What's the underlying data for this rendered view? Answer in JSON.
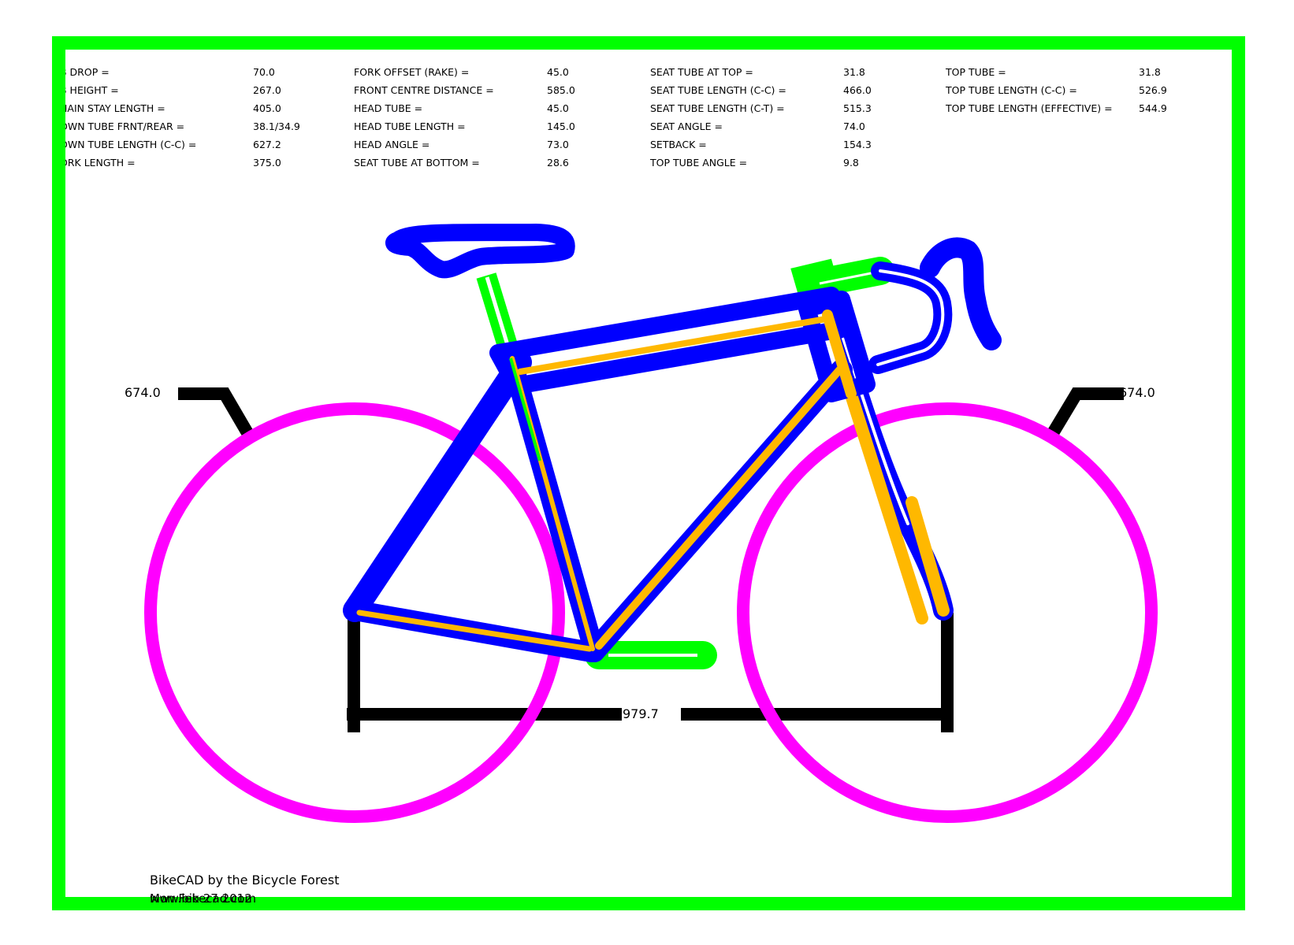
{
  "specs": {
    "col0": [
      {
        "label": "B DROP =",
        "value": "70.0"
      },
      {
        "label": "B HEIGHT =",
        "value": "267.0"
      },
      {
        "label": "HAIN STAY LENGTH =",
        "value": "405.0"
      },
      {
        "label": "OWN TUBE  FRNT/REAR =",
        "value": "38.1/34.9"
      },
      {
        "label": "OWN TUBE LENGTH (C-C) =",
        "value": "627.2"
      },
      {
        "label": "ORK LENGTH =",
        "value": "375.0"
      }
    ],
    "col1": [
      {
        "label": "FORK OFFSET (RAKE) =",
        "value": "45.0"
      },
      {
        "label": "FRONT CENTRE DISTANCE =",
        "value": "585.0"
      },
      {
        "label": "HEAD TUBE  =",
        "value": "45.0"
      },
      {
        "label": "HEAD TUBE LENGTH =",
        "value": "145.0"
      },
      {
        "label": "HEAD ANGLE =",
        "value": "73.0"
      },
      {
        "label": "SEAT TUBE  AT BOTTOM =",
        "value": "28.6"
      }
    ],
    "col2": [
      {
        "label": "SEAT TUBE  AT TOP =",
        "value": "31.8"
      },
      {
        "label": "SEAT TUBE LENGTH (C-C) =",
        "value": "466.0"
      },
      {
        "label": "SEAT TUBE LENGTH (C-T) =",
        "value": "515.3"
      },
      {
        "label": "SEAT ANGLE =",
        "value": "74.0"
      },
      {
        "label": "SETBACK =",
        "value": "154.3"
      },
      {
        "label": "TOP TUBE ANGLE =",
        "value": "9.8"
      }
    ],
    "col3": [
      {
        "label": "TOP TUBE  =",
        "value": "31.8"
      },
      {
        "label": "TOP TUBE LENGTH (C-C) =",
        "value": "526.9"
      },
      {
        "label": "TOP TUBE LENGTH (EFFECTIVE) =",
        "value": "544.9"
      }
    ]
  },
  "dimensions": {
    "rear_wheel_diameter": "674.0",
    "front_wheel_diameter": "674.0",
    "wheelbase": "979.7"
  },
  "footer": {
    "credit": "BikeCAD by the Bicycle Forest",
    "overlap_line_1": "Mon Feb 27 2012",
    "overlap_line_2": "www.bikecad.com"
  },
  "colors": {
    "frame_border": "#00ff00",
    "frame_tubes": "#0000ff",
    "centerlines": "#ffb800",
    "wheels": "#ff00ff",
    "components": "#00ff00",
    "dimension_lines": "#000000"
  }
}
